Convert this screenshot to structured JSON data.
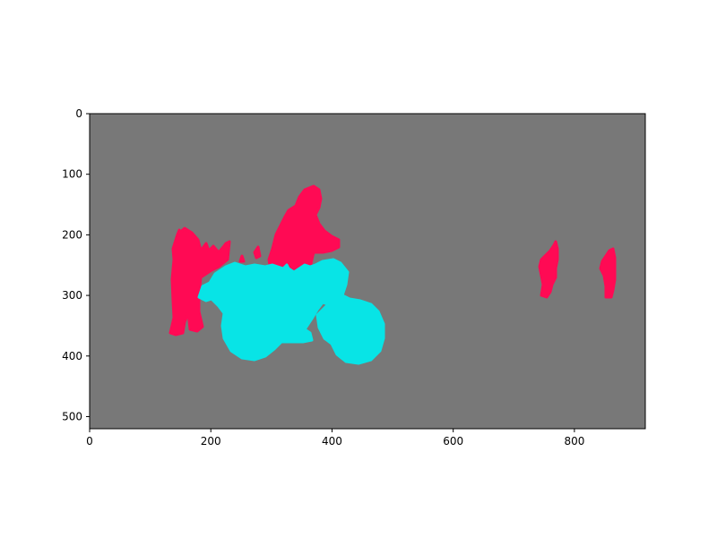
{
  "figure": {
    "background": "#ffffff",
    "image_background_color": "#787878",
    "x_range": [
      0,
      917
    ],
    "y_range": [
      520,
      0
    ]
  },
  "axes": {
    "x_ticks": [
      0,
      200,
      400,
      600,
      800
    ],
    "x_tick_labels": [
      "0",
      "200",
      "400",
      "600",
      "800"
    ],
    "y_ticks": [
      0,
      100,
      200,
      300,
      400,
      500
    ],
    "y_tick_labels": [
      "0",
      "100",
      "200",
      "300",
      "400",
      "500"
    ]
  },
  "segments": [
    {
      "class_color": "#ff0a54",
      "kind": "person-left"
    },
    {
      "class_color": "#ff0a54",
      "kind": "person-rider"
    },
    {
      "class_color": "#08e4e6",
      "kind": "bicycle"
    },
    {
      "class_color": "#ff0a54",
      "kind": "person-far-1"
    },
    {
      "class_color": "#ff0a54",
      "kind": "person-far-2"
    }
  ]
}
